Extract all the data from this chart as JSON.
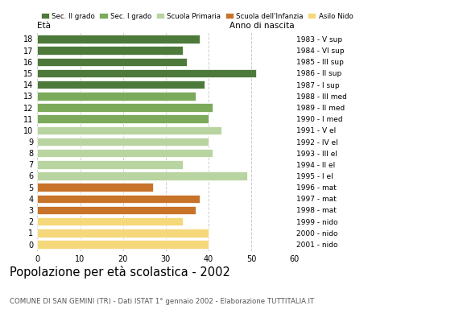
{
  "ages": [
    18,
    17,
    16,
    15,
    14,
    13,
    12,
    11,
    10,
    9,
    8,
    7,
    6,
    5,
    4,
    3,
    2,
    1,
    0
  ],
  "values": [
    38,
    34,
    35,
    51,
    39,
    37,
    41,
    40,
    43,
    40,
    41,
    34,
    49,
    27,
    38,
    37,
    34,
    40,
    40
  ],
  "anno_nascita": [
    "1983 - V sup",
    "1984 - VI sup",
    "1985 - III sup",
    "1986 - II sup",
    "1987 - I sup",
    "1988 - III med",
    "1989 - II med",
    "1990 - I med",
    "1991 - V el",
    "1992 - IV el",
    "1993 - III el",
    "1994 - II el",
    "1995 - I el",
    "1996 - mat",
    "1997 - mat",
    "1998 - mat",
    "1999 - nido",
    "2000 - nido",
    "2001 - nido"
  ],
  "colors": [
    "#4d7a3a",
    "#4d7a3a",
    "#4d7a3a",
    "#4d7a3a",
    "#4d7a3a",
    "#7aaa5a",
    "#7aaa5a",
    "#7aaa5a",
    "#b8d4a0",
    "#b8d4a0",
    "#b8d4a0",
    "#b8d4a0",
    "#b8d4a0",
    "#c8732a",
    "#c8732a",
    "#c8732a",
    "#f5d87a",
    "#f5d87a",
    "#f5d87a"
  ],
  "legend_labels": [
    "Sec. II grado",
    "Sec. I grado",
    "Scuola Primaria",
    "Scuola dell'Infanzia",
    "Asilo Nido"
  ],
  "legend_colors": [
    "#4d7a3a",
    "#7aaa5a",
    "#b8d4a0",
    "#c8732a",
    "#f5d87a"
  ],
  "title": "Popolazione per età scolastica - 2002",
  "subtitle": "COMUNE DI SAN GEMINI (TR) - Dati ISTAT 1° gennaio 2002 - Elaborazione TUTTITALIA.IT",
  "xlabel_left": "Età",
  "xlabel_right": "Anno di nascita",
  "xlim": [
    0,
    60
  ],
  "xticks": [
    0,
    10,
    20,
    30,
    40,
    50,
    60
  ],
  "background_color": "#ffffff",
  "grid_color": "#cccccc"
}
